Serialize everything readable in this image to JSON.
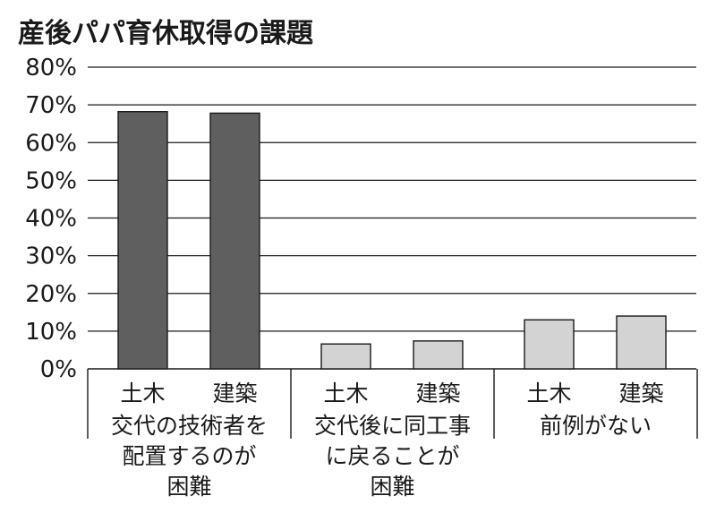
{
  "chart_data": {
    "type": "bar",
    "title": "産後パパ育休取得の課題",
    "y_ticks": [
      "0%",
      "10%",
      "20%",
      "30%",
      "40%",
      "50%",
      "60%",
      "70%",
      "80%"
    ],
    "ylim": [
      0,
      80
    ],
    "grid": true,
    "groups": [
      {
        "lines": [
          "交代の技術者を",
          "配置するのが",
          "困難"
        ],
        "bars": [
          {
            "label": "土木",
            "value": 68.2,
            "color": "#5f5f5f"
          },
          {
            "label": "建築",
            "value": 67.8,
            "color": "#5f5f5f"
          }
        ]
      },
      {
        "lines": [
          "交代後に同工事",
          "に戻ることが",
          "困難"
        ],
        "bars": [
          {
            "label": "土木",
            "value": 6.6,
            "color": "#d3d3d3"
          },
          {
            "label": "建築",
            "value": 7.4,
            "color": "#d3d3d3"
          }
        ]
      },
      {
        "lines": [
          "前例がない"
        ],
        "bars": [
          {
            "label": "土木",
            "value": 13.0,
            "color": "#d3d3d3"
          },
          {
            "label": "建築",
            "value": 14.0,
            "color": "#d3d3d3"
          }
        ]
      }
    ]
  }
}
